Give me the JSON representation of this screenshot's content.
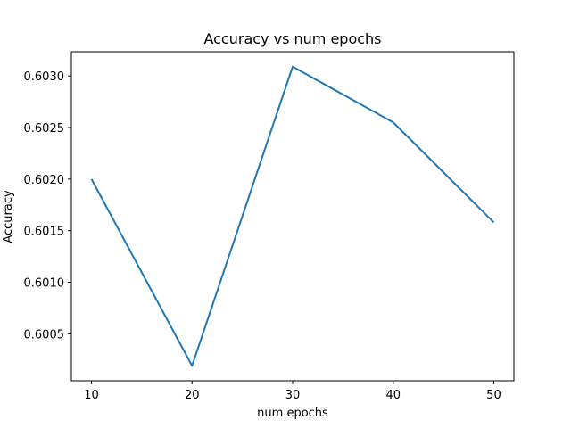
{
  "chart_data": {
    "type": "line",
    "title": "Accuracy vs num epochs",
    "xlabel": "num epochs",
    "ylabel": "Accuracy",
    "x": [
      10,
      20,
      30,
      40,
      50
    ],
    "series": [
      {
        "values": [
          0.602,
          0.60019,
          0.60309,
          0.60255,
          0.60158
        ],
        "color": "#1f77b4"
      }
    ],
    "xticks": [
      10,
      20,
      30,
      40,
      50
    ],
    "xtick_labels": [
      "10",
      "20",
      "30",
      "40",
      "50"
    ],
    "yticks": [
      0.6005,
      0.601,
      0.6015,
      0.602,
      0.6025,
      0.603
    ],
    "ytick_labels": [
      "0.6005",
      "0.6010",
      "0.6015",
      "0.6020",
      "0.6025",
      "0.6030"
    ],
    "xlim": [
      8,
      52
    ],
    "ylim": [
      0.600045,
      0.603235
    ],
    "grid": false
  }
}
